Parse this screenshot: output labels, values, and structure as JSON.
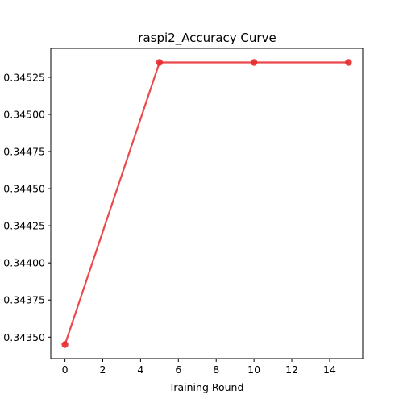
{
  "chart_data": {
    "type": "line",
    "title": "raspi2_Accuracy Curve",
    "xlabel": "Training Round",
    "ylabel": "",
    "x": [
      0,
      5,
      10,
      15
    ],
    "series": [
      {
        "values": [
          0.34345,
          0.34535,
          0.34535,
          0.34535
        ],
        "color": "#e8292b"
      }
    ],
    "xlim": [
      -0.75,
      15.75
    ],
    "ylim": [
      0.343355,
      0.345445
    ],
    "xticks": [
      0,
      2,
      4,
      6,
      8,
      10,
      12,
      14
    ],
    "yticks": [
      0.3435,
      0.34375,
      0.344,
      0.34425,
      0.3445,
      0.34475,
      0.345,
      0.34525
    ],
    "ytick_labels": [
      "0.34350",
      "0.34375",
      "0.34400",
      "0.34425",
      "0.34450",
      "0.34475",
      "0.34500",
      "0.34525"
    ],
    "grid": false,
    "legend": "none"
  }
}
